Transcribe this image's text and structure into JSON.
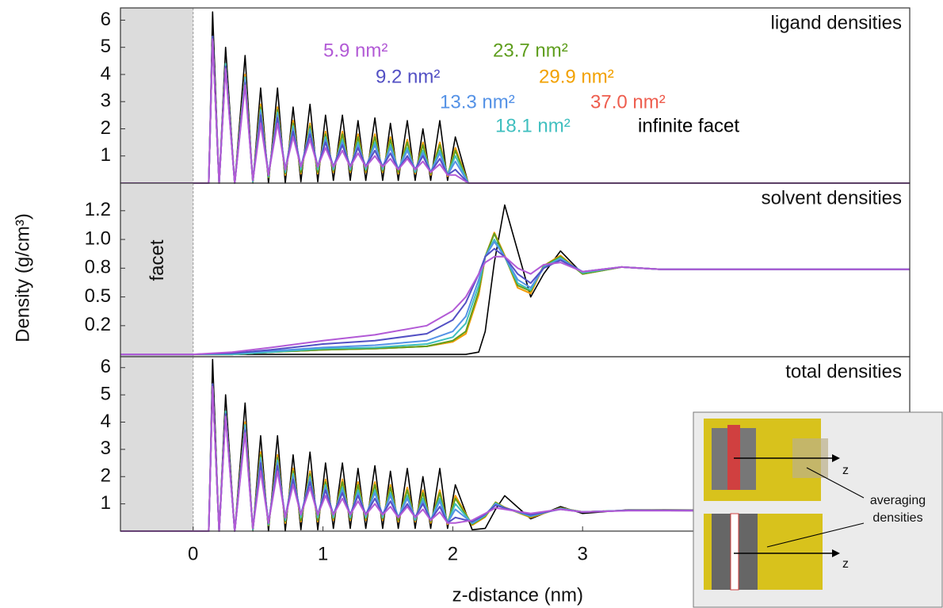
{
  "chart_data": [
    {
      "type": "line",
      "title": "ligand densities",
      "xlim": [
        -0.56,
        5.52
      ],
      "ylim": [
        0,
        6.45
      ],
      "yticks": [
        1,
        2,
        3,
        4,
        5,
        6
      ],
      "x": [
        -0.56,
        0.12,
        0.15,
        0.2,
        0.25,
        0.32,
        0.4,
        0.46,
        0.52,
        0.58,
        0.65,
        0.71,
        0.77,
        0.83,
        0.9,
        0.96,
        1.02,
        1.08,
        1.15,
        1.21,
        1.27,
        1.33,
        1.4,
        1.46,
        1.52,
        1.58,
        1.65,
        1.71,
        1.77,
        1.83,
        1.9,
        1.96,
        2.02,
        2.12,
        5.52
      ],
      "series": [
        {
          "name": "5.9 nm²",
          "color": "#b25ad6",
          "values": [
            0,
            0,
            5.3,
            0,
            4.2,
            0,
            3.6,
            0.1,
            2.2,
            0.3,
            2.2,
            0.5,
            1.7,
            0.6,
            1.6,
            0.6,
            1.3,
            0.6,
            1.2,
            0.6,
            1.1,
            0.6,
            1.0,
            0.6,
            0.9,
            0.5,
            0.9,
            0.5,
            0.8,
            0.4,
            0.7,
            0.3,
            0.3,
            0,
            0
          ]
        },
        {
          "name": "9.2 nm²",
          "color": "#5350c4",
          "values": [
            0,
            0,
            5.4,
            0,
            4.3,
            0,
            3.7,
            0.1,
            2.5,
            0.3,
            2.4,
            0.5,
            1.9,
            0.6,
            1.8,
            0.6,
            1.5,
            0.6,
            1.4,
            0.6,
            1.3,
            0.6,
            1.2,
            0.6,
            1.1,
            0.5,
            1.0,
            0.5,
            1.0,
            0.4,
            0.9,
            0.3,
            0.5,
            0,
            0
          ]
        },
        {
          "name": "13.3 nm²",
          "color": "#5592e6",
          "values": [
            0,
            0,
            5.4,
            0,
            4.3,
            0,
            3.8,
            0.1,
            2.6,
            0.3,
            2.5,
            0.5,
            2.0,
            0.6,
            1.9,
            0.6,
            1.6,
            0.6,
            1.5,
            0.6,
            1.4,
            0.6,
            1.4,
            0.6,
            1.3,
            0.5,
            1.2,
            0.5,
            1.1,
            0.4,
            1.1,
            0.3,
            0.8,
            0,
            0
          ]
        },
        {
          "name": "18.1 nm²",
          "color": "#3fbfbf",
          "values": [
            0,
            0,
            5.4,
            0,
            4.4,
            0,
            3.9,
            0.05,
            2.7,
            0.25,
            2.6,
            0.4,
            2.1,
            0.5,
            2.0,
            0.5,
            1.7,
            0.5,
            1.6,
            0.5,
            1.5,
            0.5,
            1.5,
            0.5,
            1.4,
            0.5,
            1.3,
            0.4,
            1.2,
            0.4,
            1.2,
            0.3,
            1.0,
            0,
            0
          ]
        },
        {
          "name": "23.7 nm²",
          "color": "#5f9e1e",
          "values": [
            0,
            0,
            5.4,
            0,
            4.4,
            0,
            3.9,
            0.05,
            2.8,
            0.2,
            2.7,
            0.35,
            2.2,
            0.4,
            2.1,
            0.4,
            1.8,
            0.45,
            1.8,
            0.45,
            1.7,
            0.45,
            1.7,
            0.45,
            1.6,
            0.4,
            1.5,
            0.4,
            1.4,
            0.35,
            1.4,
            0.3,
            1.2,
            0,
            0
          ]
        },
        {
          "name": "29.9 nm²",
          "color": "#f2a100",
          "values": [
            0,
            0,
            5.4,
            0,
            4.4,
            0,
            4.0,
            0.05,
            2.9,
            0.2,
            2.8,
            0.3,
            2.3,
            0.35,
            2.2,
            0.35,
            1.9,
            0.4,
            1.9,
            0.4,
            1.8,
            0.4,
            1.8,
            0.4,
            1.7,
            0.35,
            1.6,
            0.35,
            1.5,
            0.3,
            1.5,
            0.25,
            1.3,
            0,
            0
          ]
        },
        {
          "name": "37.0 nm²",
          "color": "#ee5d4e",
          "values": [
            0,
            0,
            5.4,
            0,
            4.4,
            0,
            4.0,
            0.05,
            2.9,
            0.2,
            2.8,
            0.3,
            2.3,
            0.35,
            2.2,
            0.35,
            1.9,
            0.4,
            1.9,
            0.4,
            1.8,
            0.4,
            1.8,
            0.4,
            1.7,
            0.35,
            1.6,
            0.35,
            1.5,
            0.3,
            1.5,
            0.25,
            1.3,
            0,
            0
          ]
        },
        {
          "name": "infinite facet",
          "color": "#000000",
          "values": [
            0,
            0,
            6.3,
            0,
            5.0,
            0,
            4.7,
            0,
            3.5,
            0,
            3.5,
            0,
            2.8,
            0.05,
            2.9,
            0.05,
            2.5,
            0.1,
            2.5,
            0.1,
            2.3,
            0.1,
            2.4,
            0.1,
            2.2,
            0.1,
            2.3,
            0.1,
            2.0,
            0.1,
            2.3,
            0.1,
            1.7,
            0,
            0
          ]
        }
      ]
    },
    {
      "type": "line",
      "title": "solvent densities",
      "ylabel": "Density (g/cm³)",
      "annotation": "facet",
      "xlim": [
        -0.56,
        5.52
      ],
      "ylim": [
        -0.02,
        1.49
      ],
      "yticks": [
        {
          "value": 0.25,
          "label": "0.2"
        },
        0.5,
        {
          "value": 0.75,
          "label": "0.8"
        },
        {
          "value": 1.0,
          "label": "1.0"
        },
        {
          "value": 1.25,
          "label": "1.2"
        }
      ],
      "x": [
        -0.56,
        0,
        0.3,
        0.6,
        1.0,
        1.4,
        1.8,
        2.0,
        2.1,
        2.2,
        2.25,
        2.32,
        2.4,
        2.5,
        2.6,
        2.7,
        2.83,
        3.0,
        3.3,
        3.6,
        5.52
      ],
      "series": [
        {
          "color": "#b25ad6",
          "values": [
            0,
            0,
            0.02,
            0.06,
            0.12,
            0.17,
            0.25,
            0.38,
            0.5,
            0.7,
            0.8,
            0.85,
            0.85,
            0.75,
            0.7,
            0.78,
            0.8,
            0.72,
            0.76,
            0.74,
            0.74
          ]
        },
        {
          "color": "#5350c4",
          "values": [
            0,
            0,
            0.01,
            0.04,
            0.09,
            0.12,
            0.18,
            0.3,
            0.45,
            0.7,
            0.85,
            0.92,
            0.85,
            0.7,
            0.62,
            0.75,
            0.82,
            0.72,
            0.76,
            0.74,
            0.74
          ]
        },
        {
          "color": "#5592e6",
          "values": [
            0,
            0,
            0.01,
            0.03,
            0.06,
            0.08,
            0.12,
            0.2,
            0.33,
            0.65,
            0.85,
            0.98,
            0.85,
            0.65,
            0.58,
            0.75,
            0.83,
            0.72,
            0.76,
            0.74,
            0.74
          ]
        },
        {
          "color": "#3fbfbf",
          "values": [
            0,
            0,
            0,
            0.02,
            0.05,
            0.06,
            0.09,
            0.15,
            0.27,
            0.6,
            0.85,
            1.0,
            0.85,
            0.62,
            0.56,
            0.76,
            0.84,
            0.71,
            0.76,
            0.74,
            0.74
          ]
        },
        {
          "color": "#5f9e1e",
          "values": [
            0,
            0,
            0,
            0.02,
            0.04,
            0.05,
            0.07,
            0.12,
            0.2,
            0.55,
            0.85,
            1.05,
            0.85,
            0.6,
            0.55,
            0.77,
            0.85,
            0.7,
            0.76,
            0.74,
            0.74
          ]
        },
        {
          "color": "#f2a100",
          "values": [
            0,
            0,
            0,
            0.02,
            0.04,
            0.05,
            0.07,
            0.11,
            0.18,
            0.52,
            0.85,
            1.06,
            0.86,
            0.58,
            0.53,
            0.77,
            0.86,
            0.7,
            0.76,
            0.74,
            0.74
          ]
        },
        {
          "color": "#ee5d4e",
          "values": [
            0,
            0,
            0,
            0.02,
            0.04,
            0.05,
            0.07,
            0.11,
            0.18,
            0.52,
            0.85,
            1.06,
            0.86,
            0.58,
            0.53,
            0.77,
            0.86,
            0.7,
            0.76,
            0.74,
            0.74
          ]
        },
        {
          "color": "#000000",
          "values": [
            0,
            0,
            0,
            0,
            0,
            0,
            0,
            0,
            0,
            0.02,
            0.2,
            0.8,
            1.3,
            0.9,
            0.5,
            0.7,
            0.9,
            0.7,
            0.76,
            0.74,
            0.74
          ]
        }
      ]
    },
    {
      "type": "line",
      "title": "total densities",
      "xlabel": "z-distance (nm)",
      "xlim": [
        -0.56,
        5.52
      ],
      "ylim": [
        0,
        6.4
      ],
      "yticks": [
        1,
        2,
        3,
        4,
        5,
        6
      ],
      "xticks": [
        0,
        1,
        2,
        3
      ],
      "x": [
        -0.56,
        0.12,
        0.15,
        0.2,
        0.25,
        0.32,
        0.4,
        0.46,
        0.52,
        0.58,
        0.65,
        0.71,
        0.77,
        0.83,
        0.9,
        0.96,
        1.02,
        1.08,
        1.15,
        1.21,
        1.27,
        1.33,
        1.4,
        1.46,
        1.52,
        1.58,
        1.65,
        1.71,
        1.77,
        1.83,
        1.9,
        1.96,
        2.02,
        2.15,
        2.25,
        2.33,
        2.4,
        2.6,
        2.83,
        3.0,
        3.35,
        5.52
      ],
      "series": [
        {
          "color": "#b25ad6",
          "values": [
            0,
            0,
            5.3,
            0,
            4.2,
            0,
            3.6,
            0.1,
            2.2,
            0.3,
            2.2,
            0.5,
            1.7,
            0.6,
            1.6,
            0.6,
            1.3,
            0.6,
            1.2,
            0.6,
            1.1,
            0.6,
            1.0,
            0.6,
            0.9,
            0.5,
            0.9,
            0.5,
            0.8,
            0.4,
            0.7,
            0.3,
            0.3,
            0.4,
            0.65,
            0.85,
            0.8,
            0.65,
            0.8,
            0.7,
            0.75,
            0.74
          ]
        },
        {
          "color": "#5350c4",
          "values": [
            0,
            0,
            5.4,
            0,
            4.3,
            0,
            3.7,
            0.1,
            2.5,
            0.3,
            2.4,
            0.5,
            1.9,
            0.6,
            1.8,
            0.6,
            1.5,
            0.6,
            1.4,
            0.6,
            1.3,
            0.6,
            1.2,
            0.6,
            1.1,
            0.5,
            1.0,
            0.5,
            1.0,
            0.4,
            0.9,
            0.3,
            0.5,
            0.35,
            0.62,
            0.95,
            0.85,
            0.6,
            0.8,
            0.7,
            0.76,
            0.74
          ]
        },
        {
          "color": "#5592e6",
          "values": [
            0,
            0,
            5.4,
            0,
            4.3,
            0,
            3.8,
            0.1,
            2.6,
            0.3,
            2.5,
            0.5,
            2.0,
            0.6,
            1.9,
            0.6,
            1.6,
            0.6,
            1.5,
            0.6,
            1.4,
            0.6,
            1.4,
            0.6,
            1.3,
            0.5,
            1.2,
            0.5,
            1.1,
            0.4,
            1.1,
            0.3,
            0.8,
            0.3,
            0.6,
            1.0,
            0.85,
            0.56,
            0.82,
            0.7,
            0.76,
            0.74
          ]
        },
        {
          "color": "#3fbfbf",
          "values": [
            0,
            0,
            5.4,
            0,
            4.4,
            0,
            3.9,
            0.05,
            2.7,
            0.25,
            2.6,
            0.4,
            2.1,
            0.5,
            2.0,
            0.5,
            1.7,
            0.5,
            1.6,
            0.5,
            1.5,
            0.5,
            1.5,
            0.5,
            1.4,
            0.5,
            1.3,
            0.4,
            1.2,
            0.4,
            1.2,
            0.3,
            1.0,
            0.28,
            0.58,
            1.02,
            0.85,
            0.55,
            0.83,
            0.7,
            0.76,
            0.74
          ]
        },
        {
          "color": "#5f9e1e",
          "values": [
            0,
            0,
            5.4,
            0,
            4.4,
            0,
            3.9,
            0.05,
            2.8,
            0.2,
            2.7,
            0.35,
            2.2,
            0.4,
            2.1,
            0.4,
            1.8,
            0.45,
            1.8,
            0.45,
            1.7,
            0.45,
            1.7,
            0.45,
            1.6,
            0.4,
            1.5,
            0.4,
            1.4,
            0.35,
            1.4,
            0.3,
            1.2,
            0.25,
            0.55,
            1.05,
            0.86,
            0.53,
            0.84,
            0.7,
            0.76,
            0.74
          ]
        },
        {
          "color": "#f2a100",
          "values": [
            0,
            0,
            5.4,
            0,
            4.4,
            0,
            4.0,
            0.05,
            2.9,
            0.2,
            2.8,
            0.3,
            2.3,
            0.35,
            2.2,
            0.35,
            1.9,
            0.4,
            1.9,
            0.4,
            1.8,
            0.4,
            1.8,
            0.4,
            1.7,
            0.35,
            1.6,
            0.35,
            1.5,
            0.3,
            1.5,
            0.25,
            1.3,
            0.22,
            0.52,
            1.06,
            0.87,
            0.5,
            0.85,
            0.7,
            0.76,
            0.74
          ]
        },
        {
          "color": "#ee5d4e",
          "values": [
            0,
            0,
            5.4,
            0,
            4.4,
            0,
            4.0,
            0.05,
            2.9,
            0.2,
            2.8,
            0.3,
            2.3,
            0.35,
            2.2,
            0.35,
            1.9,
            0.4,
            1.9,
            0.4,
            1.8,
            0.4,
            1.8,
            0.4,
            1.7,
            0.35,
            1.6,
            0.35,
            1.5,
            0.3,
            1.5,
            0.25,
            1.3,
            0.22,
            0.52,
            1.06,
            0.87,
            0.5,
            0.85,
            0.7,
            0.76,
            0.74
          ]
        },
        {
          "color": "#000000",
          "values": [
            0,
            0,
            6.3,
            0,
            5.0,
            0,
            4.7,
            0,
            3.5,
            0,
            3.5,
            0,
            2.8,
            0.05,
            2.9,
            0.05,
            2.5,
            0.1,
            2.5,
            0.1,
            2.3,
            0.1,
            2.4,
            0.1,
            2.2,
            0.1,
            2.3,
            0.1,
            2.0,
            0.1,
            2.3,
            0.1,
            1.7,
            0.05,
            0.1,
            0.8,
            1.3,
            0.45,
            0.9,
            0.65,
            0.78,
            0.74
          ]
        }
      ]
    }
  ],
  "inset": {
    "axis_labels": [
      "z",
      "z"
    ],
    "note_lines": [
      "averaging",
      "densities"
    ]
  }
}
